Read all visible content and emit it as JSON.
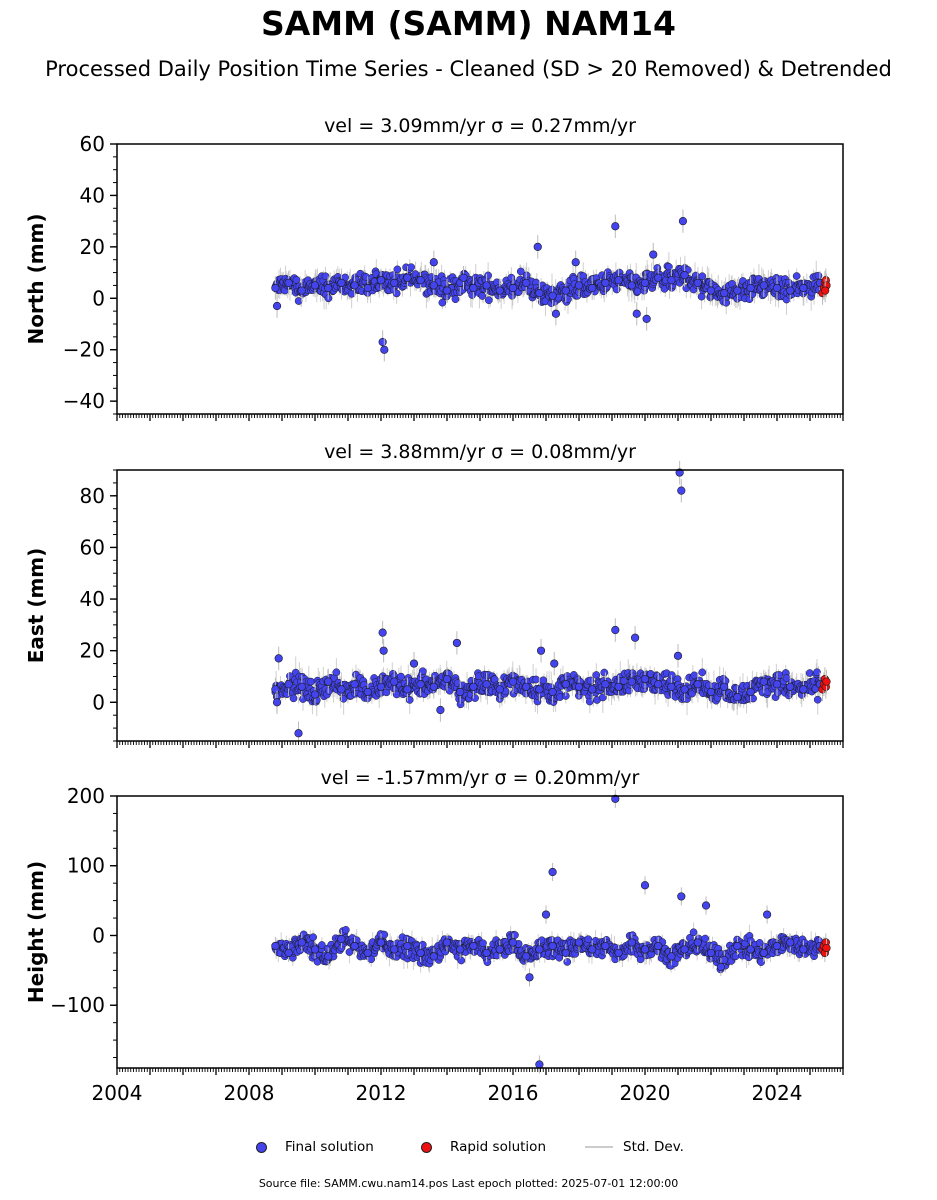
{
  "figure": {
    "title": "SAMM (SAMM) NAM14",
    "subtitle": "Processed Daily Position Time Series - Cleaned (SD > 20 Removed) & Detrended",
    "footer": "Source file: SAMM.cwu.nam14.pos  Last epoch plotted: 2025-07-01 12:00:00",
    "legend": [
      {
        "label": "Final solution",
        "color": "#4444ee",
        "kind": "dot"
      },
      {
        "label": "Rapid solution",
        "color": "#ee1111",
        "kind": "dot"
      },
      {
        "label": "Std. Dev.",
        "color": "#cccccc",
        "kind": "line"
      }
    ]
  },
  "chart_data": [
    {
      "type": "scatter",
      "title": "vel = 3.09mm/yr   σ = 0.27mm/yr",
      "xlabel": "",
      "ylabel": "North (mm)",
      "xlim": [
        2004,
        2026
      ],
      "ylim": [
        -45,
        60
      ],
      "yticks": [
        -40,
        -20,
        0,
        20,
        40,
        60
      ],
      "ytick_labels": [
        "−40",
        "−20",
        "0",
        "20",
        "40",
        "60"
      ],
      "xticks": [
        2004,
        2008,
        2012,
        2016,
        2020,
        2024
      ],
      "show_xtick_labels": false,
      "series": [
        {
          "name": "Final solution",
          "color": "#4444ee",
          "x": [
            2008.8,
            2009.2,
            2009.6,
            2010.0,
            2010.4,
            2010.8,
            2011.2,
            2011.6,
            2012.0,
            2012.4,
            2012.8,
            2013.2,
            2013.6,
            2014.0,
            2014.4,
            2014.8,
            2015.2,
            2015.6,
            2016.0,
            2016.4,
            2016.8,
            2017.2,
            2017.6,
            2018.0,
            2018.4,
            2018.8,
            2019.2,
            2019.6,
            2020.0,
            2020.4,
            2020.8,
            2021.2,
            2021.6,
            2022.0,
            2022.4,
            2022.8,
            2023.2,
            2023.6,
            2024.0,
            2024.4,
            2024.8,
            2025.3,
            2008.85,
            2012.05,
            2012.1,
            2016.75,
            2017.3,
            2017.9,
            2019.1,
            2019.75,
            2020.05,
            2021.15,
            2020.25,
            2013.6,
            2014.5
          ],
          "y": [
            4,
            6,
            3,
            5,
            4,
            6,
            5,
            4,
            7,
            6,
            8,
            7,
            5,
            3,
            6,
            4,
            5,
            3,
            4,
            6,
            2,
            1,
            3,
            5,
            4,
            6,
            7,
            5,
            6,
            8,
            7,
            9,
            6,
            3,
            2,
            3,
            4,
            5,
            4,
            3,
            4,
            6,
            -3,
            -17,
            -20,
            20,
            -6,
            14,
            28,
            -6,
            -8,
            30,
            17,
            14,
            8
          ]
        },
        {
          "name": "Rapid solution",
          "color": "#ee1111",
          "x": [
            2025.38,
            2025.42,
            2025.45,
            2025.48,
            2025.5,
            2025.46
          ],
          "y": [
            2,
            4,
            6,
            7,
            5,
            3
          ]
        }
      ]
    },
    {
      "type": "scatter",
      "title": "vel = 3.88mm/yr   σ = 0.08mm/yr",
      "xlabel": "",
      "ylabel": "East (mm)",
      "xlim": [
        2004,
        2026
      ],
      "ylim": [
        -15,
        90
      ],
      "yticks": [
        0,
        20,
        40,
        60,
        80
      ],
      "ytick_labels": [
        "0",
        "20",
        "40",
        "60",
        "80"
      ],
      "xticks": [
        2004,
        2008,
        2012,
        2016,
        2020,
        2024
      ],
      "show_xtick_labels": false,
      "series": [
        {
          "name": "Final solution",
          "color": "#4444ee",
          "x": [
            2008.8,
            2009.2,
            2009.6,
            2010.0,
            2010.4,
            2010.8,
            2011.2,
            2011.6,
            2012.0,
            2012.4,
            2012.8,
            2013.2,
            2013.6,
            2014.0,
            2014.4,
            2014.8,
            2015.2,
            2015.6,
            2016.0,
            2016.4,
            2016.8,
            2017.2,
            2017.6,
            2018.0,
            2018.4,
            2018.8,
            2019.2,
            2019.6,
            2020.0,
            2020.4,
            2020.8,
            2021.2,
            2021.6,
            2022.0,
            2022.4,
            2022.8,
            2023.2,
            2023.6,
            2024.0,
            2024.4,
            2024.8,
            2025.3,
            2008.85,
            2008.9,
            2009.5,
            2012.05,
            2012.08,
            2013.0,
            2013.8,
            2014.3,
            2016.85,
            2017.25,
            2019.1,
            2019.7,
            2021.05,
            2021.1,
            2021.0
          ],
          "y": [
            5,
            7,
            6,
            3,
            8,
            5,
            7,
            4,
            6,
            8,
            5,
            7,
            6,
            9,
            4,
            6,
            7,
            5,
            8,
            6,
            5,
            4,
            7,
            6,
            5,
            7,
            6,
            8,
            9,
            7,
            6,
            5,
            7,
            4,
            6,
            2,
            4,
            8,
            7,
            6,
            5,
            7,
            0,
            17,
            -12,
            27,
            20,
            15,
            -3,
            23,
            20,
            15,
            28,
            25,
            89,
            82,
            18
          ]
        },
        {
          "name": "Rapid solution",
          "color": "#ee1111",
          "x": [
            2025.38,
            2025.42,
            2025.45,
            2025.48,
            2025.5
          ],
          "y": [
            5,
            7,
            9,
            6,
            8
          ]
        }
      ]
    },
    {
      "type": "scatter",
      "title": "vel = -1.57mm/yr   σ = 0.20mm/yr",
      "xlabel": "",
      "ylabel": "Height (mm)",
      "xlim": [
        2004,
        2026
      ],
      "ylim": [
        -190,
        200
      ],
      "yticks": [
        -100,
        0,
        100,
        200
      ],
      "ytick_labels": [
        "−100",
        "0",
        "100",
        "200"
      ],
      "xticks": [
        2004,
        2008,
        2012,
        2016,
        2020,
        2024
      ],
      "xtick_labels": [
        "2004",
        "2008",
        "2012",
        "2016",
        "2020",
        "2024"
      ],
      "show_xtick_labels": true,
      "series": [
        {
          "name": "Final solution",
          "color": "#4444ee",
          "x": [
            2008.8,
            2009.2,
            2009.6,
            2010.0,
            2010.4,
            2010.8,
            2011.2,
            2011.6,
            2012.0,
            2012.4,
            2012.8,
            2013.2,
            2013.6,
            2014.0,
            2014.4,
            2014.8,
            2015.2,
            2015.6,
            2016.0,
            2016.4,
            2016.8,
            2017.2,
            2017.6,
            2018.0,
            2018.4,
            2018.8,
            2019.2,
            2019.6,
            2020.0,
            2020.4,
            2020.8,
            2021.2,
            2021.6,
            2022.0,
            2022.4,
            2022.8,
            2023.2,
            2023.6,
            2024.0,
            2024.4,
            2024.8,
            2025.3,
            2019.1,
            2017.2,
            2020.0,
            2021.1,
            2021.85,
            2017.0,
            2016.5,
            2016.8,
            2022.3,
            2023.7
          ],
          "y": [
            -15,
            -25,
            -10,
            -20,
            -30,
            -5,
            -15,
            -25,
            -10,
            -20,
            -15,
            -25,
            -30,
            -10,
            -20,
            -15,
            -25,
            -20,
            -10,
            -30,
            -20,
            -15,
            -25,
            -10,
            -20,
            -15,
            -25,
            -10,
            -20,
            -15,
            -30,
            -20,
            -10,
            -25,
            -35,
            -15,
            -20,
            -25,
            -15,
            -10,
            -20,
            -15,
            196,
            91,
            72,
            56,
            43,
            30,
            -60,
            -185,
            -45,
            30
          ]
        },
        {
          "name": "Rapid solution",
          "color": "#ee1111",
          "x": [
            2025.38,
            2025.42,
            2025.45,
            2025.48,
            2025.5
          ],
          "y": [
            -20,
            -15,
            -25,
            -10,
            -18
          ]
        }
      ]
    }
  ]
}
